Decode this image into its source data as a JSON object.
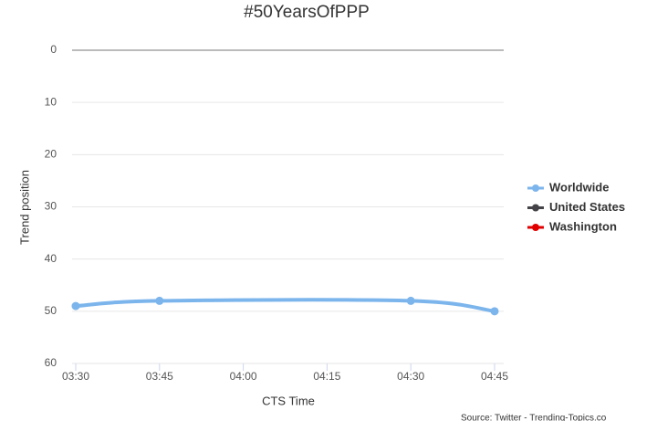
{
  "chart_data": {
    "type": "line",
    "title": "#50YearsOfPPP",
    "y_label": "Trend position",
    "x_label": "CTS Time",
    "source": "Source: Twitter - Trending-Topics.co",
    "x": [
      "03:30",
      "03:45",
      "04:30",
      "04:45"
    ],
    "series": [
      {
        "name": "Worldwide",
        "color": "#7cb5ec",
        "values": [
          49,
          48,
          48,
          50
        ]
      },
      {
        "name": "United States",
        "color": "#434348",
        "values": [
          null,
          null,
          null,
          null
        ]
      },
      {
        "name": "Washington",
        "color": "#e00000",
        "values": [
          null,
          null,
          null,
          null
        ]
      }
    ],
    "xlim": [
      "03:30",
      "04:45"
    ],
    "xticks": [
      "03:30",
      "03:45",
      "04:00",
      "04:15",
      "04:30",
      "04:45"
    ],
    "ylim": [
      0,
      60
    ],
    "yticks": [
      0,
      10,
      20,
      30,
      40,
      50,
      60
    ],
    "y_reversed": true,
    "grid": true,
    "legend": "right"
  }
}
